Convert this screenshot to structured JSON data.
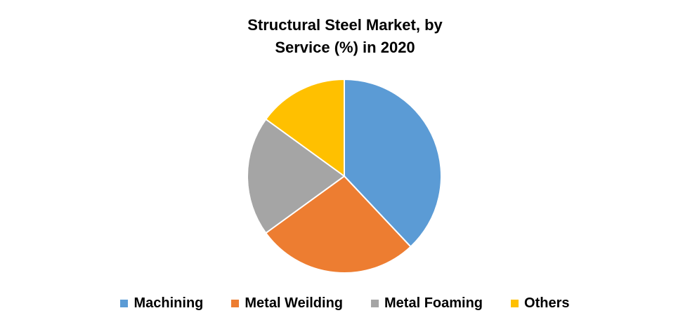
{
  "chart_data": {
    "type": "pie",
    "title": "Structural Steel Market, by Service (%) in 2020",
    "categories": [
      "Machining",
      "Metal Weilding",
      "Metal Foaming",
      "Others"
    ],
    "values": [
      38,
      27,
      20,
      15
    ],
    "colors": [
      "#5b9bd5",
      "#ed7d31",
      "#a5a5a5",
      "#ffc000"
    ],
    "legend": "bottom"
  }
}
